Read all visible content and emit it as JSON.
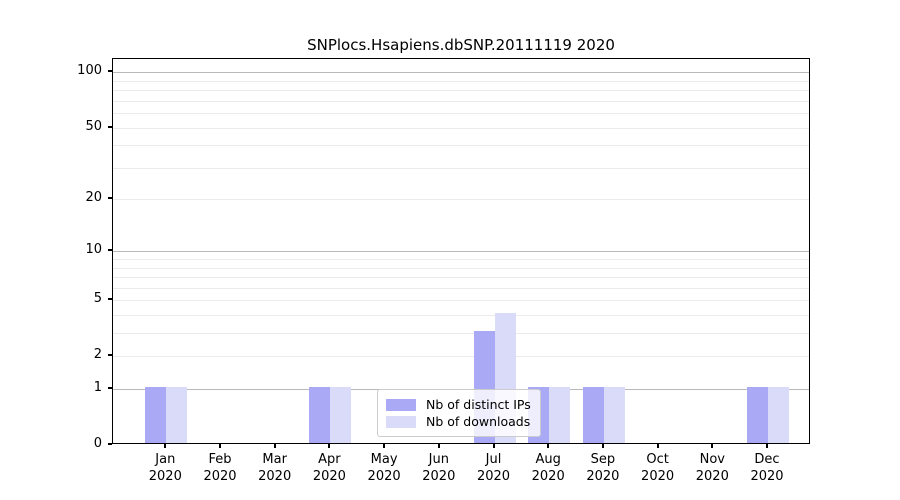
{
  "chart_data": {
    "type": "bar",
    "title": "SNPlocs.Hsapiens.dbSNP.20111119 2020",
    "categories": [
      "Jan 2020",
      "Feb 2020",
      "Mar 2020",
      "Apr 2020",
      "May 2020",
      "Jun 2020",
      "Jul 2020",
      "Aug 2020",
      "Sep 2020",
      "Oct 2020",
      "Nov 2020",
      "Dec 2020"
    ],
    "series": [
      {
        "name": "Nb of distinct IPs",
        "color": "#a9a9f5",
        "values": [
          1,
          0,
          0,
          1,
          0,
          0,
          3,
          1,
          1,
          0,
          0,
          1
        ]
      },
      {
        "name": "Nb of downloads",
        "color": "#dadaf9",
        "values": [
          1,
          0,
          0,
          1,
          0,
          0,
          4,
          1,
          1,
          0,
          0,
          1
        ]
      }
    ],
    "xlabel": "",
    "ylabel": "",
    "yscale": "log1p",
    "ylim": [
      0,
      118
    ],
    "yticks": [
      0,
      1,
      2,
      5,
      10,
      20,
      50,
      100
    ],
    "gridlines_major": [
      1,
      10,
      100
    ],
    "gridlines_minor": [
      2,
      3,
      4,
      5,
      6,
      7,
      8,
      9,
      20,
      30,
      40,
      50,
      60,
      70,
      80,
      90
    ],
    "grid": "horizontal",
    "legend_position": "lower center",
    "colors": {
      "major_grid": "#b9b9b9",
      "minor_grid": "#ebebeb",
      "axis": "#000000",
      "background": "#ffffff"
    }
  }
}
